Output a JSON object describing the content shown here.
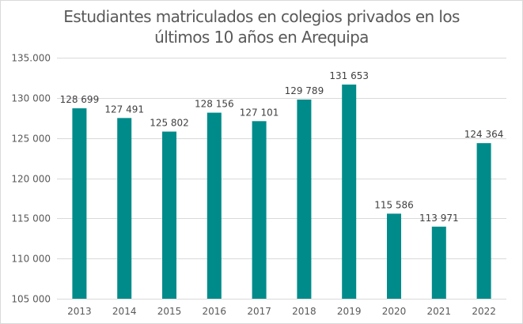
{
  "chart_data": {
    "type": "bar",
    "title": "Estudiantes matriculados en colegios privados en los últimos 10 años en Arequipa",
    "title_lines": [
      "Estudiantes matriculados en colegios privados en los",
      "últimos 10 años en Arequipa"
    ],
    "xlabel": "",
    "ylabel": "",
    "categories": [
      "2013",
      "2014",
      "2015",
      "2016",
      "2017",
      "2018",
      "2019",
      "2020",
      "2021",
      "2022"
    ],
    "values": [
      128699,
      127491,
      125802,
      128156,
      127101,
      129789,
      131653,
      115586,
      113971,
      124364
    ],
    "data_labels": [
      "128 699",
      "127 491",
      "125 802",
      "128 156",
      "127 101",
      "129 789",
      "131 653",
      "115 586",
      "113 971",
      "124 364"
    ],
    "ylim": [
      105000,
      135000
    ],
    "yticks": [
      105000,
      110000,
      115000,
      120000,
      125000,
      130000,
      135000
    ],
    "ytick_labels": [
      "105 000",
      "110 000",
      "115 000",
      "120 000",
      "125 000",
      "130 000",
      "135.000"
    ],
    "grid": true,
    "legend": "none",
    "bar_color": "#008B8B"
  }
}
